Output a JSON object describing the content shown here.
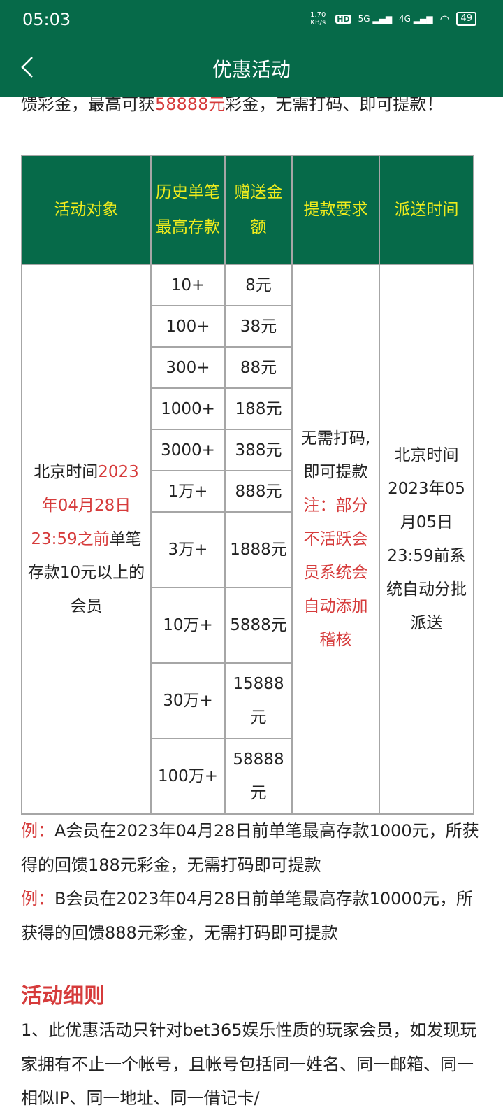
{
  "status_bar": {
    "time": "05:03",
    "net_speed": "1.70 KB/s",
    "hd": "HD",
    "sim1": "5G",
    "sim2": "4G",
    "battery": "49"
  },
  "header": {
    "title": "优惠活动",
    "back_icon": "chevron-left-icon"
  },
  "intro": {
    "text1": "馈彩金，最高可获",
    "highlight": "58888元",
    "text2": "彩金，无需打码、即可提款！"
  },
  "table": {
    "headers": [
      "活动对象",
      "历史单笔最高存款",
      "赠送金额",
      "提款要求",
      "派送时间"
    ],
    "target": {
      "t1": "北京时间",
      "red": "2023年04月28日23:59之前",
      "t2": "单笔存款10元以上的会员"
    },
    "rows": [
      {
        "deposit": "10+",
        "bonus": "8元"
      },
      {
        "deposit": "100+",
        "bonus": "38元"
      },
      {
        "deposit": "300+",
        "bonus": "88元"
      },
      {
        "deposit": "1000+",
        "bonus": "188元"
      },
      {
        "deposit": "3000+",
        "bonus": "388元"
      },
      {
        "deposit": "1万+",
        "bonus": "888元"
      },
      {
        "deposit": "3万+",
        "bonus": "1888元"
      },
      {
        "deposit": "10万+",
        "bonus": "5888元"
      },
      {
        "deposit": "30万+",
        "bonus": "15888元"
      },
      {
        "deposit": "100万+",
        "bonus": "58888元"
      }
    ],
    "withdraw": {
      "t1": "无需打码,即可提款",
      "red": "注：部分不活跃会员系统会自动添加稽核"
    },
    "delivery": "北京时间2023年05月05日23:59前系统自动分批派送"
  },
  "examples": [
    {
      "label": "例：",
      "text": "A会员在2023年04月28日前单笔最高存款1000元，所获得的回馈188元彩金，无需打码即可提款"
    },
    {
      "label": "例：",
      "text": "B会员在2023年04月28日前单笔最高存款10000元，所获得的回馈888元彩金，无需打码即可提款"
    }
  ],
  "rules": {
    "heading": "活动细则",
    "item1": "1、此优惠活动只针对bet365娱乐性质的玩家会员，如发现玩家拥有不止一个帐号，且帐号包括同一姓名、同一邮箱、同一相似IP、同一地址、同一借记卡/"
  },
  "colors": {
    "brand_green": "#066a49",
    "header_text": "#f0ec1c",
    "highlight_red": "#d63b3b"
  }
}
